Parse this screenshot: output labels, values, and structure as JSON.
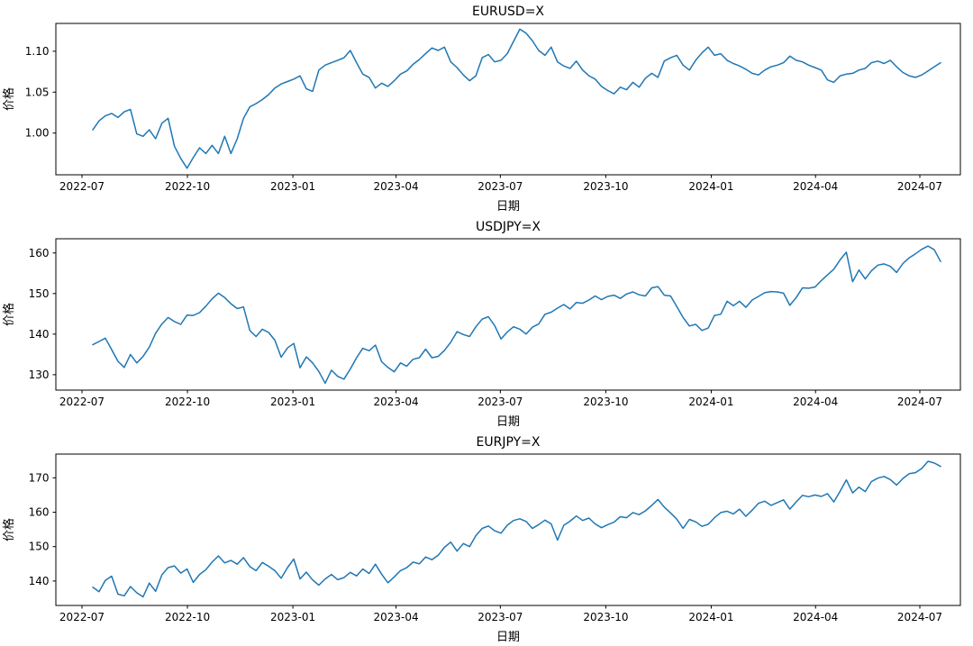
{
  "figure": {
    "background_color": "#ffffff",
    "text_color": "#000000",
    "axis_color": "#000000",
    "line_color": "#1f77b4"
  },
  "chart_data": [
    {
      "type": "line",
      "title": "EURUSD=X",
      "xlabel": "日期",
      "ylabel": "价格",
      "grid": false,
      "legend_position": "none",
      "x_range": [
        "2022-07-11",
        "2024-07-16"
      ],
      "x_tick_labels": [
        "2022-07",
        "2022-10",
        "2023-01",
        "2023-04",
        "2023-07",
        "2023-10",
        "2024-01",
        "2024-04",
        "2024-07"
      ],
      "yticks": [
        1.0,
        1.05,
        1.1
      ],
      "y_tick_labels": [
        "1.00",
        "1.05",
        "1.10"
      ],
      "ylim": [
        0.949,
        1.134
      ],
      "series": [
        {
          "name": "EURUSD=X",
          "color": "#1f77b4",
          "values": [
            1.004,
            1.015,
            1.021,
            1.024,
            1.019,
            1.026,
            1.029,
            0.999,
            0.996,
            1.004,
            0.993,
            1.012,
            1.018,
            0.984,
            0.969,
            0.957,
            0.97,
            0.982,
            0.975,
            0.985,
            0.975,
            0.996,
            0.975,
            0.993,
            1.018,
            1.032,
            1.036,
            1.041,
            1.047,
            1.055,
            1.06,
            1.063,
            1.066,
            1.07,
            1.054,
            1.051,
            1.077,
            1.083,
            1.086,
            1.089,
            1.092,
            1.101,
            1.086,
            1.072,
            1.068,
            1.055,
            1.061,
            1.057,
            1.064,
            1.072,
            1.076,
            1.084,
            1.09,
            1.097,
            1.104,
            1.101,
            1.105,
            1.087,
            1.08,
            1.071,
            1.064,
            1.07,
            1.092,
            1.096,
            1.087,
            1.089,
            1.097,
            1.112,
            1.127,
            1.122,
            1.113,
            1.101,
            1.095,
            1.105,
            1.087,
            1.082,
            1.079,
            1.088,
            1.077,
            1.07,
            1.066,
            1.057,
            1.052,
            1.048,
            1.056,
            1.053,
            1.062,
            1.056,
            1.067,
            1.073,
            1.068,
            1.088,
            1.092,
            1.095,
            1.083,
            1.077,
            1.089,
            1.098,
            1.105,
            1.095,
            1.097,
            1.089,
            1.085,
            1.082,
            1.078,
            1.073,
            1.071,
            1.077,
            1.081,
            1.083,
            1.086,
            1.094,
            1.089,
            1.087,
            1.083,
            1.08,
            1.077,
            1.065,
            1.062,
            1.07,
            1.072,
            1.073,
            1.077,
            1.079,
            1.086,
            1.088,
            1.085,
            1.089,
            1.081,
            1.074,
            1.07,
            1.068,
            1.071,
            1.076,
            1.081,
            1.086
          ]
        }
      ]
    },
    {
      "type": "line",
      "title": "USDJPY=X",
      "xlabel": "日期",
      "ylabel": "价格",
      "grid": false,
      "legend_position": "none",
      "x_range": [
        "2022-07-11",
        "2024-07-16"
      ],
      "x_tick_labels": [
        "2022-07",
        "2022-10",
        "2023-01",
        "2023-04",
        "2023-07",
        "2023-10",
        "2024-01",
        "2024-04",
        "2024-07"
      ],
      "yticks": [
        130,
        140,
        150,
        160
      ],
      "y_tick_labels": [
        "130",
        "140",
        "150",
        "160"
      ],
      "ylim": [
        126.2,
        163.5
      ],
      "series": [
        {
          "name": "USDJPY=X",
          "color": "#1f77b4",
          "values": [
            137.4,
            138.2,
            139.0,
            136.2,
            133.3,
            131.8,
            135.0,
            132.9,
            134.5,
            136.8,
            140.2,
            142.5,
            144.1,
            143.1,
            142.4,
            144.7,
            144.6,
            145.3,
            146.9,
            148.7,
            150.1,
            149.0,
            147.5,
            146.3,
            146.7,
            140.9,
            139.4,
            141.2,
            140.4,
            138.5,
            134.3,
            136.6,
            137.7,
            131.7,
            134.4,
            132.9,
            130.8,
            127.9,
            131.1,
            129.6,
            128.9,
            131.4,
            134.2,
            136.5,
            135.9,
            137.3,
            133.2,
            131.8,
            130.7,
            132.9,
            132.1,
            133.8,
            134.2,
            136.3,
            134.2,
            134.5,
            136.0,
            138.0,
            140.6,
            139.9,
            139.4,
            141.8,
            143.7,
            144.3,
            142.1,
            138.8,
            140.5,
            141.8,
            141.2,
            140.0,
            141.7,
            142.5,
            144.9,
            145.4,
            146.4,
            147.3,
            146.2,
            147.8,
            147.6,
            148.4,
            149.4,
            148.5,
            149.3,
            149.6,
            148.8,
            149.9,
            150.4,
            149.7,
            149.4,
            151.4,
            151.7,
            149.6,
            149.4,
            146.8,
            144.1,
            142.0,
            142.4,
            140.9,
            141.5,
            144.6,
            144.9,
            148.1,
            147.0,
            148.1,
            146.6,
            148.4,
            149.3,
            150.2,
            150.5,
            150.4,
            150.1,
            147.1,
            149.0,
            151.4,
            151.3,
            151.6,
            153.2,
            154.6,
            156.0,
            158.3,
            160.2,
            152.9,
            155.8,
            153.6,
            155.6,
            157.0,
            157.3,
            156.7,
            155.2,
            157.4,
            158.8,
            159.8,
            160.9,
            161.7,
            160.8,
            157.9
          ]
        }
      ]
    },
    {
      "type": "line",
      "title": "EURJPY=X",
      "xlabel": "日期",
      "ylabel": "价格",
      "grid": false,
      "legend_position": "none",
      "x_range": [
        "2022-07-11",
        "2024-07-16"
      ],
      "x_tick_labels": [
        "2022-07",
        "2022-10",
        "2023-01",
        "2023-04",
        "2023-07",
        "2023-10",
        "2024-01",
        "2024-04",
        "2024-07"
      ],
      "yticks": [
        140,
        150,
        160,
        170
      ],
      "y_tick_labels": [
        "140",
        "150",
        "160",
        "170"
      ],
      "ylim": [
        132.9,
        176.9
      ],
      "series": [
        {
          "name": "EURJPY=X",
          "color": "#1f77b4",
          "values": [
            138.2,
            136.9,
            140.2,
            141.4,
            136.2,
            135.7,
            138.4,
            136.6,
            135.4,
            139.4,
            137.0,
            141.8,
            143.9,
            144.4,
            142.3,
            143.5,
            139.6,
            141.9,
            143.3,
            145.5,
            147.3,
            145.3,
            146.0,
            144.9,
            146.8,
            144.2,
            143.0,
            145.4,
            144.3,
            143.0,
            140.8,
            143.9,
            146.4,
            140.6,
            142.6,
            140.3,
            138.8,
            140.6,
            141.9,
            140.4,
            141.0,
            142.5,
            141.5,
            143.5,
            142.2,
            144.9,
            142.0,
            139.5,
            141.2,
            143.0,
            143.9,
            145.5,
            145.0,
            147.0,
            146.2,
            147.5,
            149.8,
            151.3,
            148.7,
            150.9,
            150.0,
            153.2,
            155.3,
            156.0,
            154.6,
            153.9,
            156.2,
            157.6,
            158.1,
            157.3,
            155.3,
            156.4,
            157.7,
            156.6,
            151.9,
            156.2,
            157.4,
            158.9,
            157.6,
            158.3,
            156.6,
            155.5,
            156.4,
            157.1,
            158.7,
            158.4,
            159.9,
            159.3,
            160.4,
            162.0,
            163.7,
            161.5,
            159.8,
            158.0,
            155.3,
            157.9,
            157.2,
            155.9,
            156.5,
            158.4,
            159.9,
            160.3,
            159.5,
            160.9,
            158.8,
            160.6,
            162.6,
            163.2,
            162.0,
            162.8,
            163.6,
            160.9,
            163.0,
            164.9,
            164.5,
            165.0,
            164.6,
            165.4,
            163.0,
            166.1,
            169.4,
            165.6,
            167.3,
            166.0,
            168.9,
            169.9,
            170.4,
            169.5,
            167.9,
            169.8,
            171.2,
            171.5,
            172.7,
            174.8,
            174.3,
            173.3
          ]
        }
      ]
    }
  ]
}
